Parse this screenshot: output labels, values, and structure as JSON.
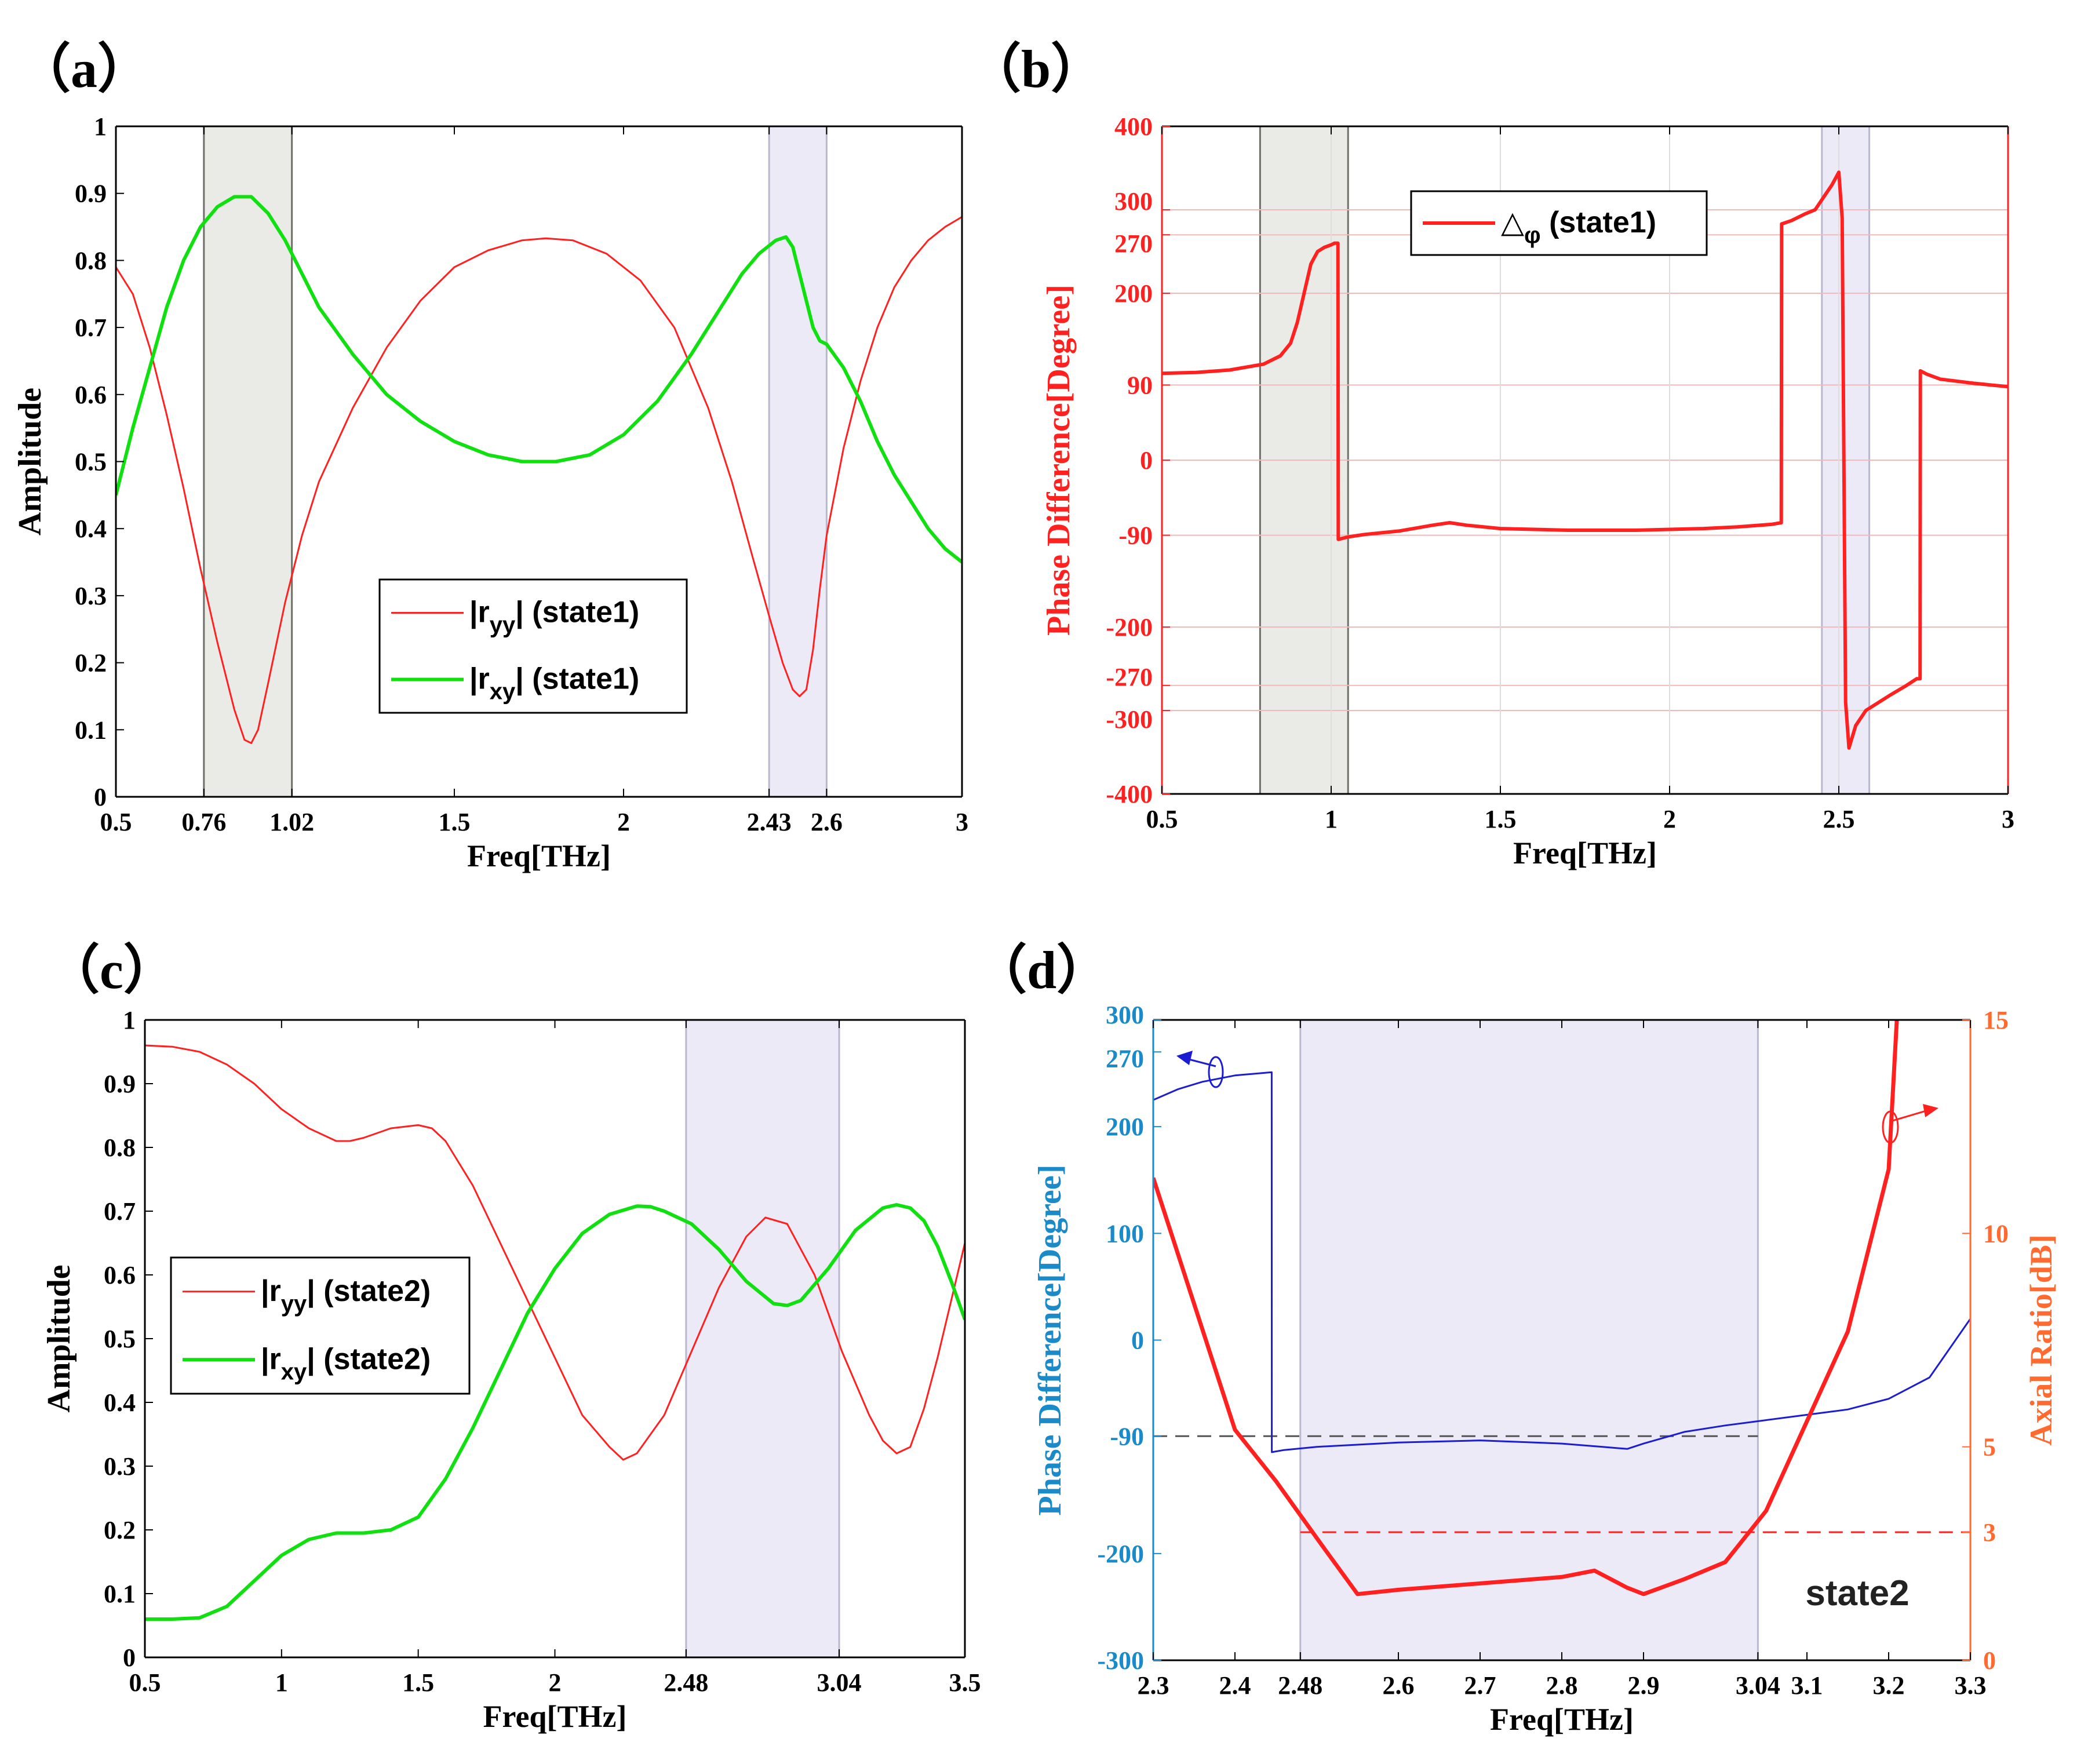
{
  "figure": {
    "panel_labels": [
      "（a）",
      "（b）",
      "（c）",
      "（d）"
    ]
  },
  "colors": {
    "red": "#ff2020",
    "green": "#10e010",
    "blue": "#1c1cd0",
    "teal_axis": "#1a8ac8",
    "orange_axis": "#ff6a30",
    "band_gray": "#eaebe6",
    "band_lavender": "#eceaf6",
    "grid_red": "#f3b9b9"
  },
  "chart_data": [
    {
      "id": "a",
      "type": "line",
      "xlabel": "Freq[THz]",
      "ylabel": "Amplitude",
      "xlim": [
        0.5,
        3
      ],
      "ylim": [
        0,
        1
      ],
      "xticks": [
        0.5,
        0.76,
        1.02,
        1.5,
        2,
        2.43,
        2.6,
        3
      ],
      "xtick_labels": [
        "0.5",
        "0.76",
        "1.02",
        "1.5",
        "2",
        "2.43",
        "2.6",
        "3"
      ],
      "yticks": [
        0,
        0.1,
        0.2,
        0.3,
        0.4,
        0.5,
        0.6,
        0.7,
        0.8,
        0.9,
        1
      ],
      "ytick_labels": [
        "0",
        "0.1",
        "0.2",
        "0.3",
        "0.4",
        "0.5",
        "0.6",
        "0.7",
        "0.8",
        "0.9",
        "1"
      ],
      "bands": [
        {
          "x0": 0.76,
          "x1": 1.02,
          "color": "gray"
        },
        {
          "x0": 2.43,
          "x1": 2.6,
          "color": "lavender"
        }
      ],
      "series": [
        {
          "name": "|r_yy| (state1)",
          "legend_main": "|r",
          "legend_sub": "yy",
          "legend_rest": "| (state1)",
          "color": "red",
          "width": 3,
          "x": [
            0.5,
            0.55,
            0.6,
            0.65,
            0.7,
            0.75,
            0.8,
            0.85,
            0.88,
            0.9,
            0.92,
            0.95,
            1,
            1.05,
            1.1,
            1.2,
            1.3,
            1.4,
            1.5,
            1.6,
            1.7,
            1.77,
            1.85,
            1.95,
            2.05,
            2.15,
            2.25,
            2.32,
            2.38,
            2.43,
            2.47,
            2.5,
            2.52,
            2.54,
            2.56,
            2.58,
            2.6,
            2.65,
            2.7,
            2.75,
            2.8,
            2.85,
            2.9,
            2.95,
            3
          ],
          "y": [
            0.79,
            0.75,
            0.67,
            0.57,
            0.46,
            0.34,
            0.23,
            0.13,
            0.085,
            0.08,
            0.1,
            0.17,
            0.29,
            0.39,
            0.47,
            0.58,
            0.67,
            0.74,
            0.79,
            0.815,
            0.83,
            0.833,
            0.83,
            0.81,
            0.77,
            0.7,
            0.58,
            0.47,
            0.36,
            0.27,
            0.2,
            0.16,
            0.15,
            0.16,
            0.22,
            0.31,
            0.39,
            0.52,
            0.62,
            0.7,
            0.76,
            0.8,
            0.83,
            0.85,
            0.865
          ]
        },
        {
          "name": "|r_xy| (state1)",
          "legend_main": "|r",
          "legend_sub": "xy",
          "legend_rest": "| (state1)",
          "color": "green",
          "width": 6,
          "x": [
            0.5,
            0.55,
            0.6,
            0.65,
            0.7,
            0.75,
            0.8,
            0.85,
            0.9,
            0.95,
            1,
            1.05,
            1.1,
            1.2,
            1.3,
            1.4,
            1.5,
            1.6,
            1.7,
            1.8,
            1.9,
            2,
            2.1,
            2.2,
            2.3,
            2.35,
            2.4,
            2.45,
            2.48,
            2.5,
            2.53,
            2.56,
            2.58,
            2.6,
            2.65,
            2.7,
            2.75,
            2.8,
            2.85,
            2.9,
            2.95,
            3
          ],
          "y": [
            0.45,
            0.55,
            0.64,
            0.73,
            0.8,
            0.85,
            0.88,
            0.895,
            0.895,
            0.87,
            0.83,
            0.78,
            0.73,
            0.66,
            0.6,
            0.56,
            0.53,
            0.51,
            0.5,
            0.5,
            0.51,
            0.54,
            0.59,
            0.66,
            0.74,
            0.78,
            0.81,
            0.83,
            0.835,
            0.82,
            0.76,
            0.7,
            0.68,
            0.675,
            0.64,
            0.59,
            0.53,
            0.48,
            0.44,
            0.4,
            0.37,
            0.35
          ]
        }
      ]
    },
    {
      "id": "b",
      "type": "line",
      "xlabel": "Freq[THz]",
      "ylabel": "Phase Difference[Degree]",
      "xlim": [
        0.5,
        3
      ],
      "ylim": [
        -400,
        400
      ],
      "xticks": [
        0.5,
        1,
        1.5,
        2,
        2.5,
        3
      ],
      "xtick_labels": [
        "0.5",
        "1",
        "1.5",
        "2",
        "2.5",
        "3"
      ],
      "yticks": [
        -400,
        -300,
        -270,
        -200,
        -90,
        0,
        90,
        200,
        270,
        300,
        400
      ],
      "ytick_labels": [
        "-400",
        "-300",
        "-270",
        "-200",
        "-90",
        "0",
        "90",
        "200",
        "270",
        "300",
        "400"
      ],
      "grid_y": [
        -300,
        -270,
        -200,
        -90,
        0,
        90,
        200,
        270,
        300
      ],
      "grid_x": [
        1,
        1.5,
        2,
        2.5
      ],
      "bands": [
        {
          "x0": 0.79,
          "x1": 1.05,
          "color": "gray"
        },
        {
          "x0": 2.45,
          "x1": 2.59,
          "color": "lavender"
        }
      ],
      "series": [
        {
          "name": "△φ (state1)",
          "legend_main": "△",
          "legend_sub": "φ",
          "legend_rest": " (state1)",
          "color": "red",
          "width": 6,
          "x": [
            0.5,
            0.6,
            0.7,
            0.8,
            0.85,
            0.88,
            0.9,
            0.92,
            0.94,
            0.96,
            0.98,
            1.0,
            1.01,
            1.02,
            1.021,
            1.05,
            1.1,
            1.2,
            1.3,
            1.35,
            1.4,
            1.5,
            1.7,
            1.9,
            2.1,
            2.2,
            2.3,
            2.33,
            2.331,
            2.36,
            2.4,
            2.43,
            2.46,
            2.48,
            2.5,
            2.51,
            2.52,
            2.53,
            2.55,
            2.58,
            2.65,
            2.7,
            2.73,
            2.74,
            2.741,
            2.76,
            2.8,
            2.9,
            3.0
          ],
          "y": [
            104,
            105,
            108,
            115,
            125,
            140,
            165,
            200,
            235,
            250,
            255,
            258,
            260,
            260,
            -95,
            -92,
            -89,
            -85,
            -78,
            -75,
            -78,
            -82,
            -84,
            -84,
            -82,
            -80,
            -77,
            -75,
            283,
            287,
            295,
            300,
            318,
            330,
            345,
            290,
            -290,
            -345,
            -318,
            -300,
            -282,
            -270,
            -262,
            -262,
            107,
            103,
            97,
            92,
            88
          ]
        }
      ]
    },
    {
      "id": "c",
      "type": "line",
      "xlabel": "Freq[THz]",
      "ylabel": "Amplitude",
      "xlim": [
        0.5,
        3.5
      ],
      "ylim": [
        0,
        1
      ],
      "xticks": [
        0.5,
        1,
        1.5,
        2,
        2.48,
        3.04,
        3.5
      ],
      "xtick_labels": [
        "0.5",
        "1",
        "1.5",
        "2",
        "2.48",
        "3.04",
        "3.5"
      ],
      "yticks": [
        0,
        0.1,
        0.2,
        0.3,
        0.4,
        0.5,
        0.6,
        0.7,
        0.8,
        0.9,
        1
      ],
      "ytick_labels": [
        "0",
        "0.1",
        "0.2",
        "0.3",
        "0.4",
        "0.5",
        "0.6",
        "0.7",
        "0.8",
        "0.9",
        "1"
      ],
      "bands": [
        {
          "x0": 2.48,
          "x1": 3.04,
          "color": "lavender"
        }
      ],
      "series": [
        {
          "name": "|r_yy| (state2)",
          "legend_main": "|r",
          "legend_sub": "yy",
          "legend_rest": "| (state2)",
          "color": "red",
          "width": 3,
          "x": [
            0.5,
            0.6,
            0.7,
            0.8,
            0.9,
            1,
            1.1,
            1.2,
            1.25,
            1.3,
            1.4,
            1.5,
            1.55,
            1.6,
            1.7,
            1.8,
            1.9,
            2,
            2.1,
            2.2,
            2.25,
            2.3,
            2.4,
            2.5,
            2.6,
            2.7,
            2.77,
            2.85,
            2.95,
            3.05,
            3.15,
            3.2,
            3.25,
            3.3,
            3.35,
            3.4,
            3.45,
            3.5
          ],
          "y": [
            0.96,
            0.958,
            0.95,
            0.93,
            0.9,
            0.86,
            0.83,
            0.81,
            0.81,
            0.815,
            0.83,
            0.835,
            0.83,
            0.81,
            0.74,
            0.65,
            0.56,
            0.47,
            0.38,
            0.33,
            0.31,
            0.32,
            0.38,
            0.48,
            0.58,
            0.66,
            0.69,
            0.68,
            0.6,
            0.48,
            0.38,
            0.34,
            0.32,
            0.33,
            0.39,
            0.47,
            0.56,
            0.65
          ]
        },
        {
          "name": "|r_xy| (state2)",
          "legend_main": "|r",
          "legend_sub": "xy",
          "legend_rest": "| (state2)",
          "color": "green",
          "width": 6,
          "x": [
            0.5,
            0.6,
            0.7,
            0.8,
            0.9,
            1,
            1.1,
            1.2,
            1.3,
            1.4,
            1.5,
            1.6,
            1.7,
            1.8,
            1.9,
            2,
            2.1,
            2.2,
            2.3,
            2.35,
            2.4,
            2.5,
            2.6,
            2.7,
            2.8,
            2.85,
            2.9,
            3,
            3.1,
            3.2,
            3.25,
            3.3,
            3.35,
            3.4,
            3.45,
            3.5
          ],
          "y": [
            0.06,
            0.06,
            0.062,
            0.08,
            0.12,
            0.16,
            0.185,
            0.195,
            0.195,
            0.2,
            0.22,
            0.28,
            0.36,
            0.45,
            0.54,
            0.61,
            0.665,
            0.695,
            0.708,
            0.707,
            0.7,
            0.68,
            0.64,
            0.59,
            0.555,
            0.552,
            0.56,
            0.61,
            0.67,
            0.705,
            0.71,
            0.705,
            0.685,
            0.645,
            0.59,
            0.53
          ]
        }
      ]
    },
    {
      "id": "d",
      "type": "line",
      "xlabel": "Freq[THz]",
      "ylabel_left": "Phase Difference[Degree]",
      "ylabel_right": "Axial Ratio[dB]",
      "xlim": [
        2.3,
        3.3
      ],
      "ylim_left": [
        -300,
        300
      ],
      "ylim_right": [
        0,
        15
      ],
      "xticks": [
        2.3,
        2.4,
        2.48,
        2.6,
        2.7,
        2.8,
        2.9,
        3.04,
        3.1,
        3.2,
        3.3
      ],
      "xtick_labels": [
        "2.3",
        "2.4",
        "2.48",
        "2.6",
        "2.7",
        "2.8",
        "2.9",
        "3.04",
        "3.1",
        "3.2",
        "3.3"
      ],
      "yticks_left": [
        -300,
        -200,
        -90,
        0,
        100,
        200,
        270,
        300
      ],
      "ytick_labels_left": [
        "-300",
        "-200",
        "-90",
        "0",
        "100",
        "200",
        "270",
        "300"
      ],
      "yticks_right": [
        0,
        3,
        5,
        10,
        15
      ],
      "ytick_labels_right": [
        "0",
        "3",
        "5",
        "10",
        "15"
      ],
      "bands": [
        {
          "x0": 2.48,
          "x1": 3.04,
          "color": "lavender"
        }
      ],
      "annotation": "state2",
      "ref_lines": [
        {
          "axis": "left",
          "y": -90,
          "x0": 2.3,
          "x1": 3.04,
          "color": "#555555"
        },
        {
          "axis": "right",
          "y": 3,
          "x0": 2.48,
          "x1": 3.3,
          "color": "red"
        }
      ],
      "series": [
        {
          "name": "Phase Difference",
          "axis": "left",
          "color": "blue",
          "width": 3,
          "x": [
            2.3,
            2.33,
            2.36,
            2.4,
            2.43,
            2.445,
            2.4451,
            2.46,
            2.5,
            2.6,
            2.7,
            2.8,
            2.85,
            2.88,
            2.9,
            2.95,
            3.0,
            3.05,
            3.1,
            3.15,
            3.2,
            3.25,
            3.3
          ],
          "y": [
            225,
            235,
            242,
            248,
            250,
            251,
            -105,
            -103,
            -100,
            -96,
            -94,
            -97,
            -100,
            -102,
            -97,
            -86,
            -80,
            -75,
            -70,
            -65,
            -55,
            -35,
            20
          ]
        },
        {
          "name": "Axial Ratio",
          "axis": "right",
          "color": "red",
          "width": 7,
          "x": [
            2.3,
            2.4,
            2.45,
            2.51,
            2.55,
            2.6,
            2.7,
            2.8,
            2.84,
            2.88,
            2.9,
            2.95,
            3.0,
            3.05,
            3.1,
            3.15,
            3.2,
            3.21
          ],
          "y": [
            11.3,
            5.4,
            4.2,
            2.6,
            1.55,
            1.65,
            1.8,
            1.95,
            2.1,
            1.7,
            1.55,
            1.9,
            2.3,
            3.5,
            5.6,
            7.7,
            11.5,
            15
          ]
        }
      ]
    }
  ]
}
